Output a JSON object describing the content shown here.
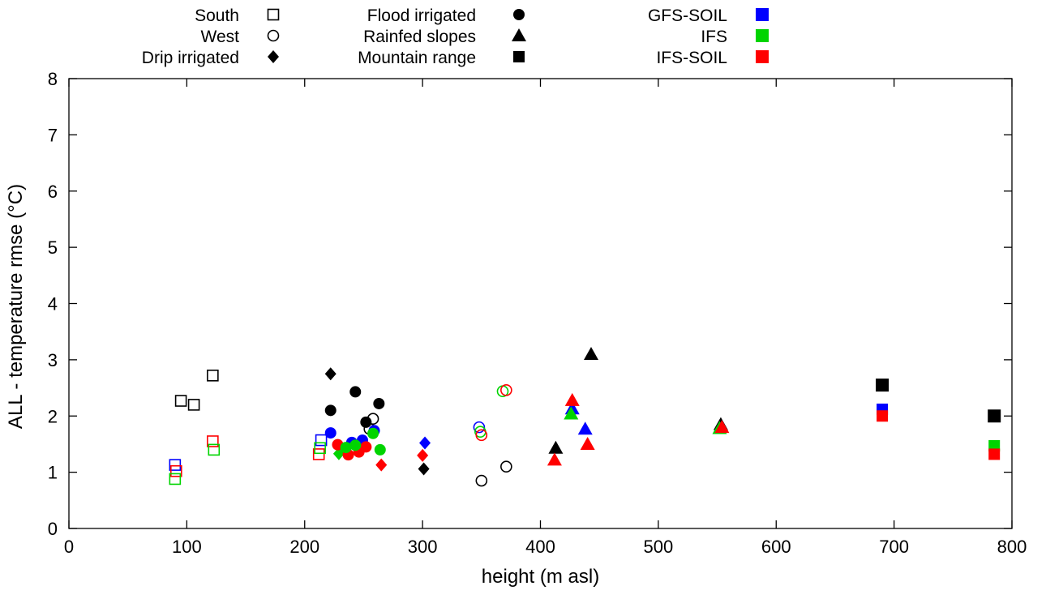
{
  "chart_data": {
    "type": "scatter",
    "title": "",
    "xlabel": "height (m asl)",
    "ylabel": "ALL - temperature rmse (°C)",
    "xlim": [
      0,
      800
    ],
    "ylim": [
      0,
      8
    ],
    "xticks": [
      0,
      100,
      200,
      300,
      400,
      500,
      600,
      700,
      800
    ],
    "yticks": [
      0,
      1,
      2,
      3,
      4,
      5,
      6,
      7,
      8
    ],
    "grid": false,
    "legend_position": "top-outside",
    "colors": {
      "black": "#000000",
      "GFS-SOIL": "#0000ff",
      "IFS": "#00d400",
      "IFS-SOIL": "#ff0000"
    },
    "legend": {
      "columns": [
        {
          "entries": [
            {
              "label": "South",
              "marker": "open-square",
              "color": "#000000"
            },
            {
              "label": "West",
              "marker": "open-circle",
              "color": "#000000"
            },
            {
              "label": "Drip irrigated",
              "marker": "filled-diamond",
              "color": "#000000"
            }
          ]
        },
        {
          "entries": [
            {
              "label": "Flood irrigated",
              "marker": "filled-circle",
              "color": "#000000"
            },
            {
              "label": "Rainfed slopes",
              "marker": "filled-triangle",
              "color": "#000000"
            },
            {
              "label": "Mountain range",
              "marker": "filled-square",
              "color": "#000000"
            }
          ]
        },
        {
          "entries": [
            {
              "label": "GFS-SOIL",
              "marker": "filled-square",
              "color": "#0000ff"
            },
            {
              "label": "IFS",
              "marker": "filled-square",
              "color": "#00d400"
            },
            {
              "label": "IFS-SOIL",
              "marker": "filled-square",
              "color": "#ff0000"
            }
          ]
        }
      ]
    },
    "series": [
      {
        "name": "South",
        "marker": "open-square",
        "points": [
          {
            "x": 95,
            "y": 2.27,
            "color": "#000000"
          },
          {
            "x": 106,
            "y": 2.2,
            "color": "#000000"
          },
          {
            "x": 122,
            "y": 2.72,
            "color": "#000000"
          },
          {
            "x": 90,
            "y": 1.13,
            "color": "#0000ff"
          },
          {
            "x": 214,
            "y": 1.57,
            "color": "#0000ff"
          },
          {
            "x": 91,
            "y": 1.02,
            "color": "#ff0000"
          },
          {
            "x": 122,
            "y": 1.55,
            "color": "#ff0000"
          },
          {
            "x": 212,
            "y": 1.32,
            "color": "#ff0000"
          },
          {
            "x": 90,
            "y": 0.88,
            "color": "#00d400"
          },
          {
            "x": 123,
            "y": 1.4,
            "color": "#00d400"
          },
          {
            "x": 213,
            "y": 1.43,
            "color": "#00d400"
          }
        ]
      },
      {
        "name": "West",
        "marker": "open-circle",
        "points": [
          {
            "x": 258,
            "y": 1.95,
            "color": "#000000"
          },
          {
            "x": 255,
            "y": 1.77,
            "color": "#000000"
          },
          {
            "x": 350,
            "y": 0.85,
            "color": "#000000"
          },
          {
            "x": 371,
            "y": 1.1,
            "color": "#000000"
          },
          {
            "x": 348,
            "y": 1.8,
            "color": "#0000ff"
          },
          {
            "x": 349,
            "y": 1.72,
            "color": "#00d400"
          },
          {
            "x": 368,
            "y": 2.44,
            "color": "#00d400"
          },
          {
            "x": 350,
            "y": 1.66,
            "color": "#ff0000"
          },
          {
            "x": 371,
            "y": 2.46,
            "color": "#ff0000"
          }
        ]
      },
      {
        "name": "Drip irrigated",
        "marker": "filled-diamond",
        "points": [
          {
            "x": 222,
            "y": 2.75,
            "color": "#000000"
          },
          {
            "x": 301,
            "y": 1.06,
            "color": "#000000"
          },
          {
            "x": 302,
            "y": 1.52,
            "color": "#0000ff"
          },
          {
            "x": 265,
            "y": 1.13,
            "color": "#ff0000"
          },
          {
            "x": 300,
            "y": 1.3,
            "color": "#ff0000"
          },
          {
            "x": 229,
            "y": 1.33,
            "color": "#00d400"
          }
        ]
      },
      {
        "name": "Flood irrigated",
        "marker": "filled-circle",
        "points": [
          {
            "x": 222,
            "y": 2.1,
            "color": "#000000"
          },
          {
            "x": 243,
            "y": 2.43,
            "color": "#000000"
          },
          {
            "x": 263,
            "y": 2.22,
            "color": "#000000"
          },
          {
            "x": 252,
            "y": 1.89,
            "color": "#000000"
          },
          {
            "x": 222,
            "y": 1.7,
            "color": "#0000ff"
          },
          {
            "x": 240,
            "y": 1.53,
            "color": "#0000ff"
          },
          {
            "x": 249,
            "y": 1.57,
            "color": "#0000ff"
          },
          {
            "x": 259,
            "y": 1.74,
            "color": "#0000ff"
          },
          {
            "x": 228,
            "y": 1.49,
            "color": "#ff0000"
          },
          {
            "x": 237,
            "y": 1.31,
            "color": "#ff0000"
          },
          {
            "x": 246,
            "y": 1.36,
            "color": "#ff0000"
          },
          {
            "x": 252,
            "y": 1.45,
            "color": "#ff0000"
          },
          {
            "x": 235,
            "y": 1.44,
            "color": "#00d400"
          },
          {
            "x": 243,
            "y": 1.48,
            "color": "#00d400"
          },
          {
            "x": 258,
            "y": 1.69,
            "color": "#00d400"
          },
          {
            "x": 264,
            "y": 1.4,
            "color": "#00d400"
          }
        ]
      },
      {
        "name": "Rainfed slopes",
        "marker": "filled-triangle",
        "points": [
          {
            "x": 443,
            "y": 3.1,
            "color": "#000000"
          },
          {
            "x": 413,
            "y": 1.43,
            "color": "#000000"
          },
          {
            "x": 553,
            "y": 1.85,
            "color": "#000000"
          },
          {
            "x": 427,
            "y": 2.13,
            "color": "#0000ff"
          },
          {
            "x": 438,
            "y": 1.77,
            "color": "#0000ff"
          },
          {
            "x": 426,
            "y": 2.04,
            "color": "#00d400"
          },
          {
            "x": 552,
            "y": 1.78,
            "color": "#00d400"
          },
          {
            "x": 427,
            "y": 2.28,
            "color": "#ff0000"
          },
          {
            "x": 412,
            "y": 1.22,
            "color": "#ff0000"
          },
          {
            "x": 440,
            "y": 1.5,
            "color": "#ff0000"
          },
          {
            "x": 554,
            "y": 1.8,
            "color": "#ff0000"
          }
        ]
      },
      {
        "name": "Mountain range",
        "marker": "filled-square",
        "points": [
          {
            "x": 690,
            "y": 2.55,
            "color": "#000000"
          },
          {
            "x": 785,
            "y": 2.0,
            "color": "#000000"
          },
          {
            "x": 690,
            "y": 2.12,
            "color": "#0000ff"
          },
          {
            "x": 785,
            "y": 1.47,
            "color": "#00d400"
          },
          {
            "x": 690,
            "y": 2.0,
            "color": "#ff0000"
          },
          {
            "x": 785,
            "y": 1.32,
            "color": "#ff0000"
          }
        ]
      }
    ]
  }
}
